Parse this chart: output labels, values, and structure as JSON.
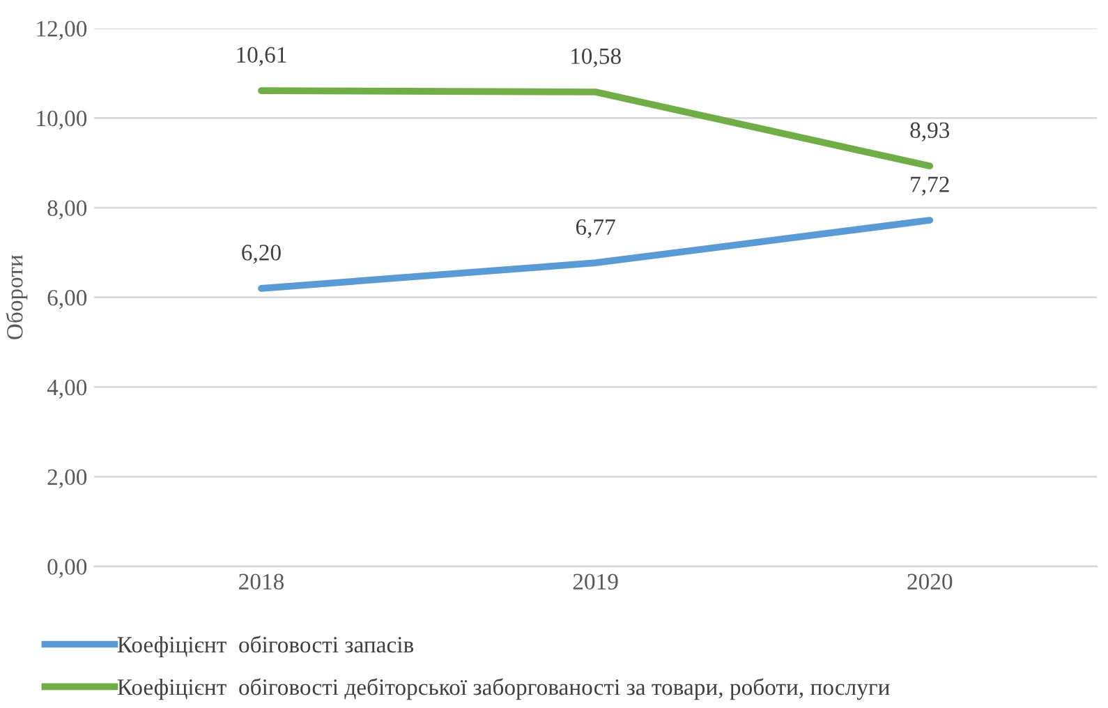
{
  "chart_data": {
    "type": "line",
    "ylabel": "Обороти",
    "categories": [
      "2018",
      "2019",
      "2020"
    ],
    "series": [
      {
        "name": "Коефіцієнт  обіговості запасів",
        "color": "#5b9bd5",
        "values": [
          6.2,
          6.77,
          7.72
        ],
        "value_labels": [
          "6,20",
          "6,77",
          "7,72"
        ]
      },
      {
        "name": "Коефіцієнт  обіговості дебіторської заборгованості за товари, роботи, послуги",
        "color": "#70ad47",
        "values": [
          10.61,
          10.58,
          8.93
        ],
        "value_labels": [
          "10,61",
          "10,58",
          "8,93"
        ]
      }
    ],
    "ylim": [
      0,
      12
    ],
    "yticks": [
      {
        "value": 0,
        "label": "0,00"
      },
      {
        "value": 2,
        "label": "2,00"
      },
      {
        "value": 4,
        "label": "4,00"
      },
      {
        "value": 6,
        "label": "6,00"
      },
      {
        "value": 8,
        "label": "8,00"
      },
      {
        "value": 10,
        "label": "10,00"
      },
      {
        "value": 12,
        "label": "12,00"
      }
    ],
    "grid": "y",
    "legend": "bottom",
    "marker": "none",
    "line_style": "solid"
  }
}
